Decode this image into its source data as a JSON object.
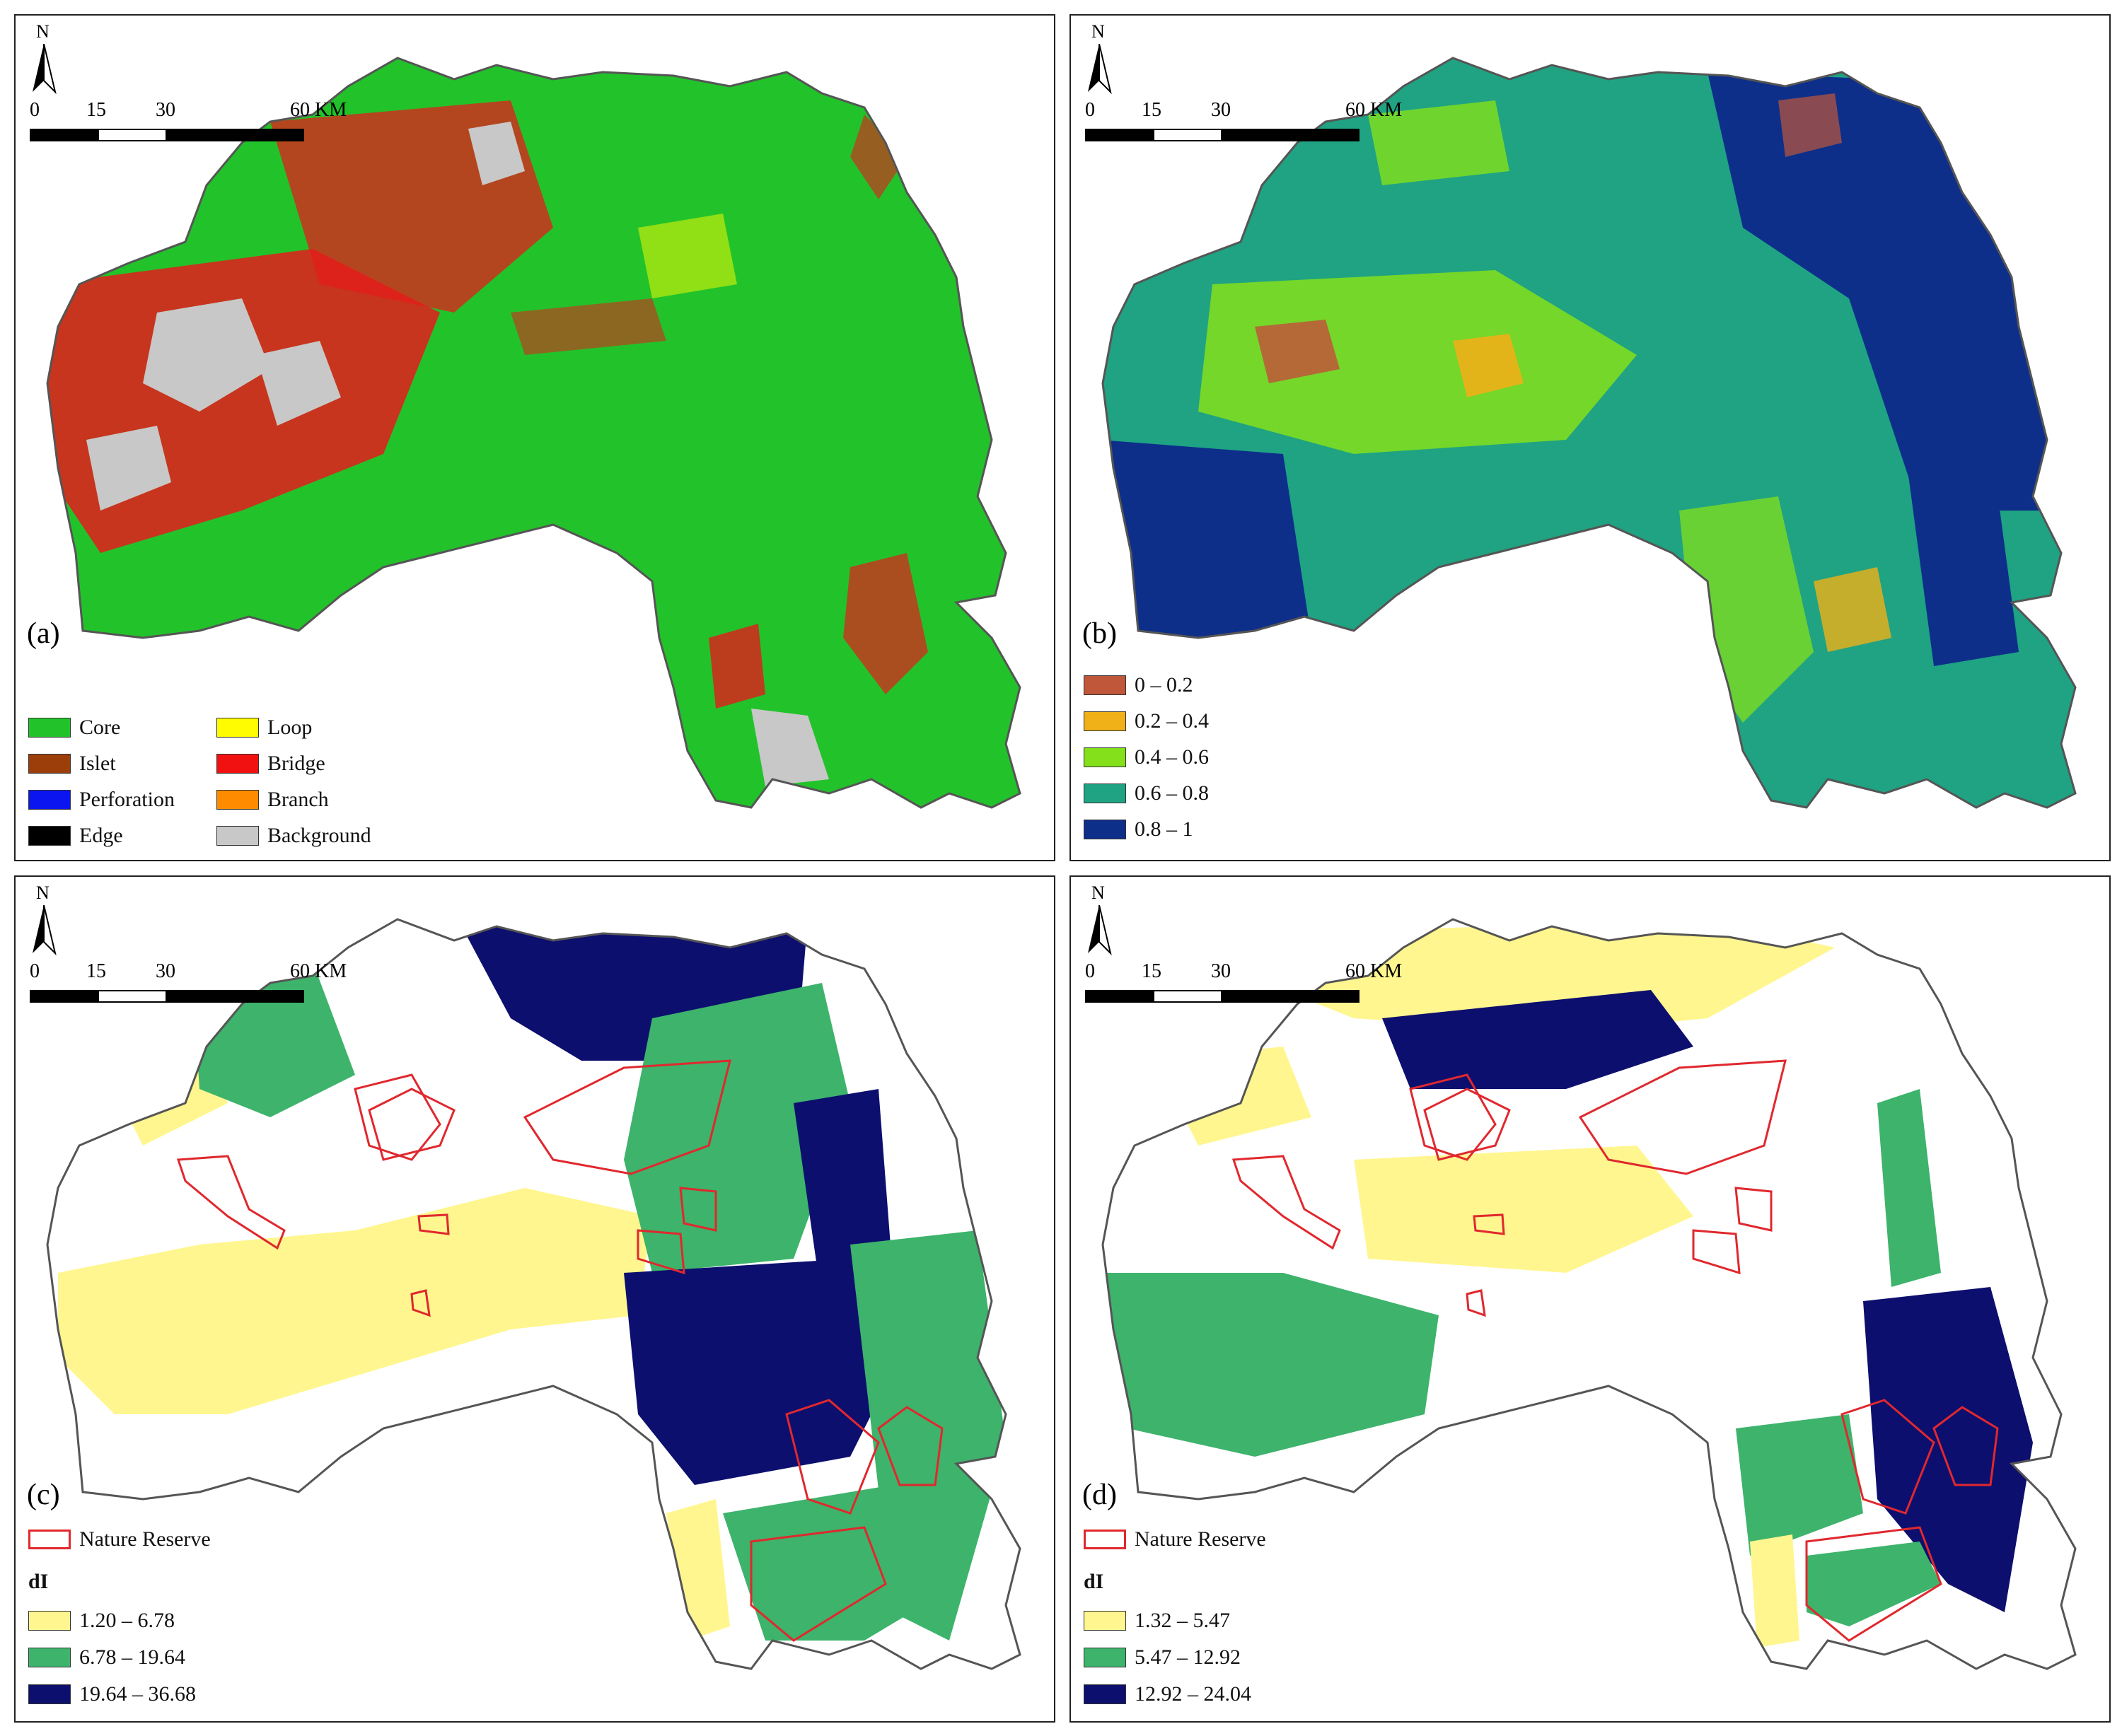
{
  "scale": {
    "ticks": [
      "0",
      "15",
      "30",
      "60 KM"
    ]
  },
  "north_label": "N",
  "panels": {
    "a": {
      "label": "(a)"
    },
    "b": {
      "label": "(b)"
    },
    "c": {
      "label": "(c)"
    },
    "d": {
      "label": "(d)"
    }
  },
  "legend_a": {
    "left": [
      {
        "label": "Core",
        "color": "#22c32a"
      },
      {
        "label": "Islet",
        "color": "#9b3e0a"
      },
      {
        "label": "Perforation",
        "color": "#0a15f0"
      },
      {
        "label": "Edge",
        "color": "#000000"
      }
    ],
    "right": [
      {
        "label": "Loop",
        "color": "#fffb00"
      },
      {
        "label": "Bridge",
        "color": "#f21111"
      },
      {
        "label": "Branch",
        "color": "#ff8c00"
      },
      {
        "label": "Background",
        "color": "#c8c8c8"
      }
    ]
  },
  "legend_b": [
    {
      "label": "0 – 0.2",
      "color": "#c0563a"
    },
    {
      "label": "0.2 – 0.4",
      "color": "#f0b018"
    },
    {
      "label": "0.4 – 0.6",
      "color": "#84e01a"
    },
    {
      "label": "0.6 – 0.8",
      "color": "#1fa383"
    },
    {
      "label": "0.8 – 1",
      "color": "#0d2f8a"
    }
  ],
  "legend_c": {
    "nature_reserve": "Nature Reserve",
    "heading": "dI",
    "classes": [
      {
        "label": "1.20 – 6.78",
        "color": "#fff68f"
      },
      {
        "label": "6.78 – 19.64",
        "color": "#3db36b"
      },
      {
        "label": "19.64 – 36.68",
        "color": "#0c0f6e"
      }
    ]
  },
  "legend_d": {
    "nature_reserve": "Nature Reserve",
    "heading": "dI",
    "classes": [
      {
        "label": "1.32 – 5.47",
        "color": "#fff68f"
      },
      {
        "label": "5.47 – 12.92",
        "color": "#3db36b"
      },
      {
        "label": "12.92 – 24.04",
        "color": "#0c0f6e"
      }
    ]
  }
}
